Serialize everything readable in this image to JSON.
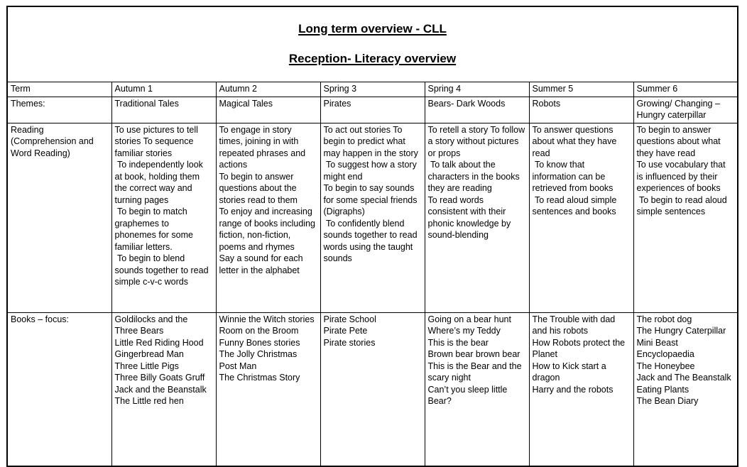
{
  "colors": {
    "border": "#000000",
    "background": "#ffffff",
    "text": "#000000"
  },
  "title": {
    "line1": "Long term overview - CLL",
    "line2": "Reception- Literacy overview"
  },
  "table": {
    "columns": [
      "Term",
      "Autumn 1",
      "Autumn 2",
      "Spring 3",
      "Spring 4",
      "Summer 5",
      "Summer 6"
    ],
    "rows": [
      {
        "label": "Themes:",
        "cells": [
          "Traditional Tales",
          "Magical Tales",
          "Pirates",
          "Bears- Dark Woods",
          "Robots",
          "Growing/ Changing – Hungry caterpillar"
        ]
      },
      {
        "label": "Reading (Comprehension and Word Reading)",
        "cells": [
          "To use pictures to tell stories To sequence familiar stories\n To independently look at book, holding them the correct way and turning pages\n To begin to match graphemes to phonemes for some familiar letters.\n To begin to blend sounds together to read simple c-v-c words",
          "To engage in story times, joining in with repeated phrases and actions\nTo begin to answer questions about the stories read to them\nTo enjoy and increasing range of books including fiction, non-fiction, poems and rhymes\nSay a sound for each letter in the alphabet",
          "To act out stories To begin to predict what may happen in the story\n To suggest how a story might end\nTo begin to say sounds for some special friends (Digraphs)\n To confidently blend sounds together to read words using the taught sounds",
          "To retell a story To follow a story without pictures or props\n To talk about the characters in the books they are reading\nTo read words consistent with their phonic knowledge by sound-blending",
          "To answer questions about what they have read\n To know that information can be retrieved from books\n To read aloud simple sentences and books",
          "To begin to answer questions about what they have read\nTo use vocabulary that is influenced by their experiences of books\n To begin to read aloud simple sentences"
        ]
      },
      {
        "label": "Books – focus:",
        "cells": [
          "Goldilocks and the Three Bears\nLittle Red Riding Hood\nGingerbread Man\nThree Little Pigs\nThree Billy Goats Gruff\nJack and the Beanstalk\nThe Little red hen",
          "Winnie the Witch stories\nRoom on the Broom\nFunny Bones stories\nThe Jolly Christmas Post Man\nThe Christmas Story",
          "Pirate School\nPirate Pete\nPirate stories",
          "Going on a bear hunt\nWhere’s my Teddy\nThis is the bear\nBrown bear brown bear\nThis is the Bear and the scary night\nCan’t you sleep little Bear?",
          "The Trouble with dad and his robots\nHow Robots protect the Planet\nHow to Kick start a dragon\nHarry and the robots",
          "The robot dog\nThe Hungry Caterpillar\nMini Beast Encyclopaedia\nThe Honeybee\nJack and The Beanstalk\nEating Plants\nThe Bean Diary"
        ]
      }
    ]
  }
}
